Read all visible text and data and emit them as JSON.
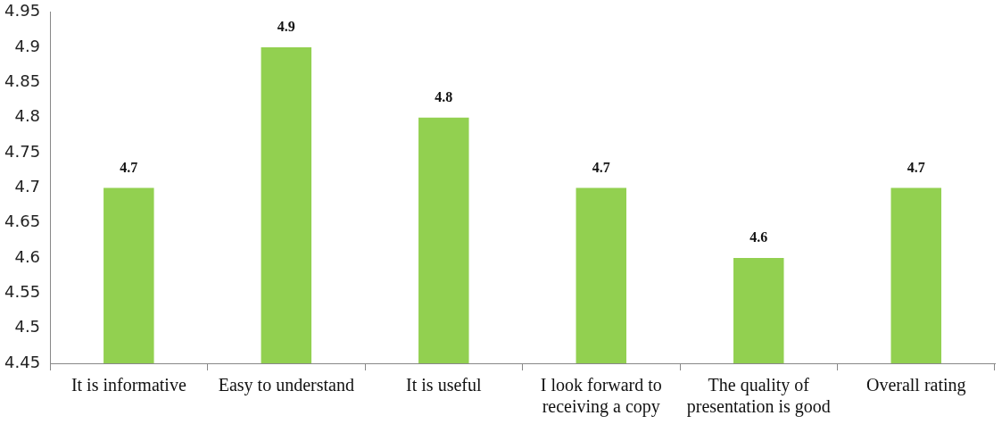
{
  "chart_data": {
    "type": "bar",
    "categories": [
      "It is informative",
      "Easy to understand",
      "It is useful",
      "I look forward to receiving a copy",
      "The quality of presentation is good",
      "Overall rating"
    ],
    "values": [
      4.7,
      4.9,
      4.8,
      4.7,
      4.6,
      4.7
    ],
    "color": "#92d050",
    "ylim": [
      4.45,
      4.95
    ],
    "yticks": [
      4.45,
      4.5,
      4.55,
      4.6,
      4.65,
      4.7,
      4.75,
      4.8,
      4.85,
      4.9,
      4.95
    ],
    "data_labels": true,
    "grid": false,
    "legend": false
  }
}
